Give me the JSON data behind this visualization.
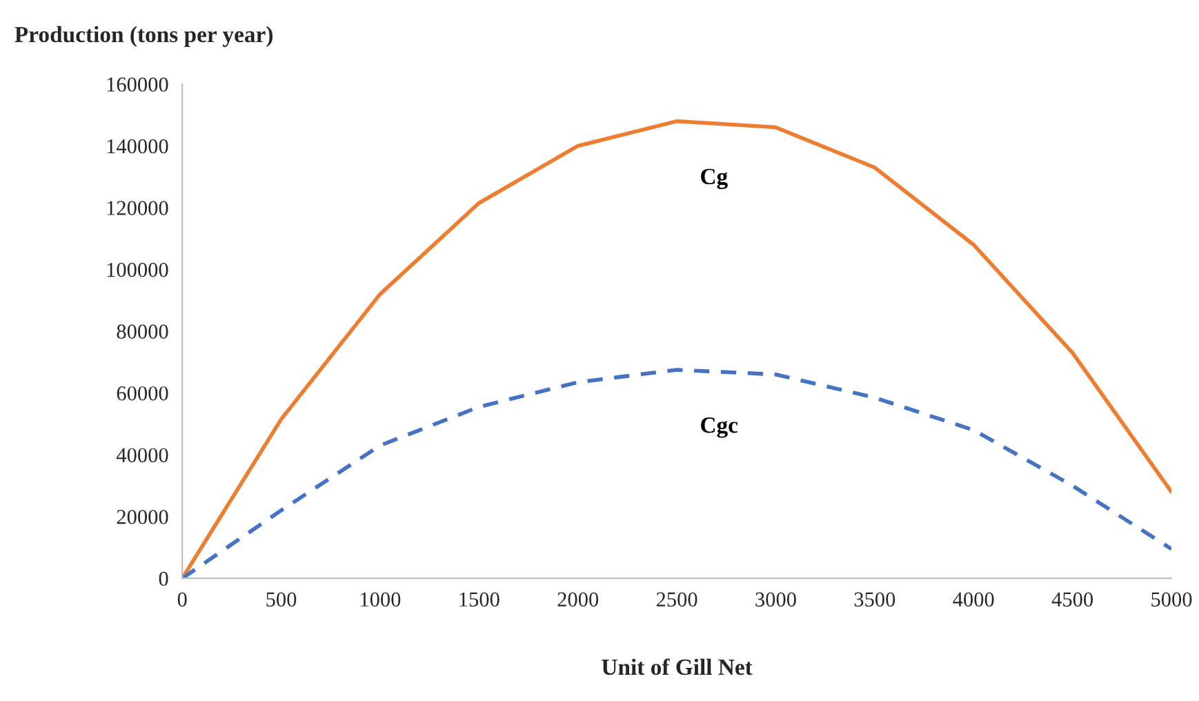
{
  "chart_data": {
    "type": "line",
    "xlabel": "Unit of Gill Net",
    "ylabel": "Production (tons per year)",
    "x": [
      0,
      500,
      1000,
      1500,
      2000,
      2500,
      3000,
      3500,
      4000,
      4500,
      5000
    ],
    "series": [
      {
        "name": "Cg",
        "color": "#ed7d31",
        "line_style": "solid",
        "values": [
          0,
          51500,
          92000,
          121500,
          140000,
          148000,
          146000,
          133000,
          108000,
          73000,
          28000
        ]
      },
      {
        "name": "Cgc",
        "color": "#4472c4",
        "line_style": "dashed",
        "values": [
          0,
          22000,
          43000,
          55500,
          63500,
          67500,
          66000,
          58500,
          48000,
          30000,
          9500
        ]
      }
    ],
    "xlim": [
      0,
      5000
    ],
    "xticks": [
      0,
      500,
      1000,
      1500,
      2000,
      2500,
      3000,
      3500,
      4000,
      4500,
      5000
    ],
    "ylim": [
      0,
      160000
    ],
    "yticks": [
      0,
      20000,
      40000,
      60000,
      80000,
      100000,
      120000,
      140000,
      160000
    ],
    "grid": false,
    "legend": false,
    "marker": "none"
  }
}
